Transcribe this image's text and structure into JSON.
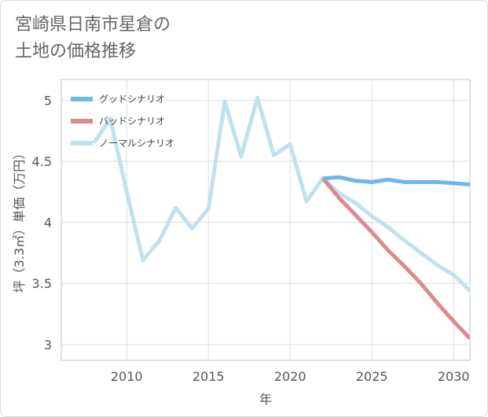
{
  "title": {
    "line1": "宮崎県日南市星倉の",
    "line2": "土地の価格推移"
  },
  "chart_data": {
    "type": "line",
    "xlabel": "年",
    "ylabel": "坪（3.3㎡）単価（万円）",
    "xlim": [
      2006,
      2031
    ],
    "ylim": [
      2.87,
      5.17
    ],
    "xticks": [
      2010,
      2015,
      2020,
      2025,
      2030
    ],
    "yticks": [
      3,
      3.5,
      4,
      4.5,
      5
    ],
    "xtick_labels": [
      "2010",
      "2015",
      "2020",
      "2025",
      "2030"
    ],
    "ytick_labels": [
      "3",
      "3.5",
      "4",
      "4.5",
      "5"
    ],
    "legend_position": "top-left",
    "series": [
      {
        "name": "グッドシナリオ",
        "color": "#6cb8ec",
        "x": [
          2022,
          2023,
          2024,
          2025,
          2026,
          2027,
          2028,
          2029,
          2030,
          2031
        ],
        "y": [
          4.36,
          4.37,
          4.34,
          4.33,
          4.35,
          4.33,
          4.33,
          4.33,
          4.32,
          4.31
        ]
      },
      {
        "name": "バッドシナリオ",
        "color": "#dc8a92",
        "x": [
          2022,
          2023,
          2024,
          2025,
          2026,
          2027,
          2028,
          2029,
          2030,
          2031
        ],
        "y": [
          4.36,
          4.2,
          4.06,
          3.92,
          3.77,
          3.64,
          3.5,
          3.34,
          3.19,
          3.05
        ]
      },
      {
        "name": "ノーマルシナリオ",
        "color": "#c2e1ec",
        "x": [
          2008,
          2009,
          2010,
          2011,
          2012,
          2013,
          2014,
          2015,
          2016,
          2017,
          2018,
          2019,
          2020,
          2021,
          2022,
          2023,
          2024,
          2025,
          2026,
          2027,
          2028,
          2029,
          2030,
          2031
        ],
        "y": [
          4.65,
          4.85,
          4.25,
          3.69,
          3.85,
          4.12,
          3.95,
          4.11,
          4.99,
          4.54,
          5.02,
          4.55,
          4.64,
          4.17,
          4.36,
          4.24,
          4.16,
          4.05,
          3.96,
          3.85,
          3.75,
          3.65,
          3.57,
          3.44
        ]
      }
    ]
  }
}
